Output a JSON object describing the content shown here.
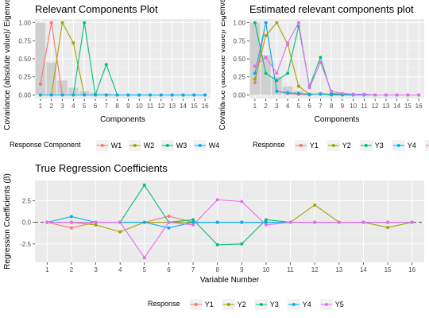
{
  "chart_data": [
    {
      "type": "line",
      "title": "Relevant Components Plot",
      "xlabel": "Components",
      "ylabel": "Covariance (absolute value)/ Eigenvalue",
      "x": [
        1,
        2,
        3,
        4,
        5,
        6,
        7,
        8,
        9,
        10,
        11,
        12,
        13,
        14,
        15,
        16
      ],
      "ylim": [
        0,
        1
      ],
      "yticks": [
        "0.00",
        "0.25",
        "0.50",
        "0.75",
        "1.00"
      ],
      "bars": [
        1.0,
        0.45,
        0.2,
        0.1,
        0.05,
        0.03,
        0.02,
        0.01,
        0.01,
        0.01,
        0.0,
        0.0,
        0.0,
        0.0,
        0.0,
        0.0
      ],
      "legend_title": "Response Component",
      "legend_visible": [
        "W1",
        "W2",
        "W3",
        "W4"
      ],
      "series": [
        {
          "name": "W1",
          "color": "#F8766D",
          "values": [
            0.15,
            1.0,
            0.0,
            0.0,
            0.0,
            0.0,
            0.0,
            0.0,
            0.0,
            0.0,
            0.0,
            0.0,
            0.0,
            0.0,
            0.0,
            0.0
          ]
        },
        {
          "name": "W2",
          "color": "#A3A500",
          "values": [
            0.0,
            0.0,
            1.0,
            0.72,
            0.0,
            0.0,
            0.0,
            0.0,
            0.0,
            0.0,
            0.0,
            0.0,
            0.0,
            0.0,
            0.0,
            0.0
          ]
        },
        {
          "name": "W3",
          "color": "#00BF7D",
          "values": [
            0.0,
            0.0,
            0.0,
            0.0,
            1.0,
            0.0,
            0.42,
            0.0,
            0.0,
            0.0,
            0.0,
            0.0,
            0.0,
            0.0,
            0.0,
            0.0
          ]
        },
        {
          "name": "W4",
          "color": "#00B0F6",
          "values": [
            0.0,
            0.0,
            0.0,
            0.0,
            0.0,
            0.0,
            0.0,
            0.0,
            0.0,
            0.0,
            0.0,
            0.0,
            0.0,
            0.0,
            0.0,
            0.0
          ]
        }
      ],
      "grid": true
    },
    {
      "type": "line",
      "title": "Estimated relevant components plot",
      "xlabel": "Components",
      "ylabel": "Covariance (absolute value)/ Eigenvalue",
      "x": [
        1,
        2,
        3,
        4,
        5,
        6,
        7,
        8,
        9,
        10,
        11,
        12,
        13,
        14,
        15,
        16
      ],
      "ylim": [
        0,
        1
      ],
      "yticks": [
        "0.00",
        "0.25",
        "0.50",
        "0.75",
        "1.00"
      ],
      "bars": [
        1.0,
        0.55,
        0.25,
        0.12,
        0.06,
        0.03,
        0.02,
        0.01,
        0.01,
        0.0,
        0.0,
        0.0,
        0.0,
        0.0,
        0.0,
        0.0
      ],
      "legend_title": "Response",
      "series": [
        {
          "name": "Y1",
          "color": "#F8766D",
          "values": [
            0.17,
            1.0,
            0.05,
            0.02,
            0.01,
            0.0,
            0.02,
            0.01,
            0.0,
            0.0,
            0.0,
            0.0,
            0.0,
            0.0,
            0.0,
            0.0
          ]
        },
        {
          "name": "Y2",
          "color": "#A3A500",
          "values": [
            0.22,
            0.82,
            1.0,
            0.7,
            0.12,
            0.01,
            0.01,
            0.01,
            0.01,
            0.0,
            0.01,
            0.0,
            0.0,
            0.0,
            0.0,
            0.0
          ]
        },
        {
          "name": "Y3",
          "color": "#00BF7D",
          "values": [
            1.0,
            0.3,
            0.2,
            0.3,
            0.95,
            0.12,
            0.52,
            0.02,
            0.01,
            0.01,
            0.0,
            0.0,
            0.0,
            0.0,
            0.0,
            0.0
          ]
        },
        {
          "name": "Y4",
          "color": "#00B0F6",
          "values": [
            0.3,
            1.0,
            0.05,
            0.03,
            0.02,
            0.01,
            0.01,
            0.0,
            0.0,
            0.0,
            0.0,
            0.0,
            0.0,
            0.0,
            0.0,
            0.0
          ]
        },
        {
          "name": "Y5",
          "color": "#E76BF3",
          "values": [
            0.4,
            0.52,
            0.3,
            0.72,
            1.0,
            0.1,
            0.45,
            0.05,
            0.02,
            0.01,
            0.01,
            0.0,
            0.0,
            0.0,
            0.0,
            0.0
          ]
        }
      ],
      "grid": true
    },
    {
      "type": "line",
      "title": "True Regression Coefficients",
      "xlabel": "Variable Number",
      "ylabel": "Regression Coefficients (β)",
      "x": [
        1,
        2,
        3,
        4,
        5,
        6,
        7,
        8,
        9,
        10,
        11,
        12,
        13,
        14,
        15,
        16
      ],
      "ylim": [
        -4.2,
        4.4
      ],
      "yticks": [
        -2.5,
        0.0,
        2.5
      ],
      "ytick_labels": [
        "-2.5",
        "0.0",
        "2.5"
      ],
      "hline": 0,
      "legend_title": "Response",
      "series": [
        {
          "name": "Y1",
          "color": "#F8766D",
          "values": [
            0.0,
            -0.65,
            0.0,
            0.0,
            0.0,
            0.7,
            0.0,
            0.0,
            0.0,
            0.0,
            0.0,
            0.0,
            0.0,
            0.0,
            0.0,
            0.0
          ]
        },
        {
          "name": "Y2",
          "color": "#A3A500",
          "values": [
            0.0,
            0.0,
            -0.3,
            -1.1,
            0.0,
            0.0,
            0.0,
            0.0,
            0.0,
            0.0,
            0.0,
            2.0,
            0.0,
            0.0,
            -0.6,
            0.0
          ]
        },
        {
          "name": "Y3",
          "color": "#00BF7D",
          "values": [
            0.0,
            0.0,
            0.0,
            0.0,
            4.3,
            0.0,
            0.3,
            -2.6,
            -2.5,
            0.3,
            0.0,
            0.0,
            0.0,
            0.0,
            0.0,
            0.0
          ]
        },
        {
          "name": "Y4",
          "color": "#00B0F6",
          "values": [
            0.0,
            0.65,
            0.0,
            0.0,
            0.0,
            -0.65,
            0.0,
            0.0,
            0.0,
            0.0,
            0.0,
            0.0,
            0.0,
            0.0,
            0.0,
            0.0
          ]
        },
        {
          "name": "Y5",
          "color": "#E76BF3",
          "values": [
            0.0,
            0.0,
            0.0,
            0.0,
            -4.1,
            0.0,
            -0.3,
            2.6,
            2.4,
            -0.3,
            0.0,
            0.0,
            0.0,
            0.0,
            0.0,
            0.0
          ]
        }
      ],
      "grid": true
    }
  ]
}
